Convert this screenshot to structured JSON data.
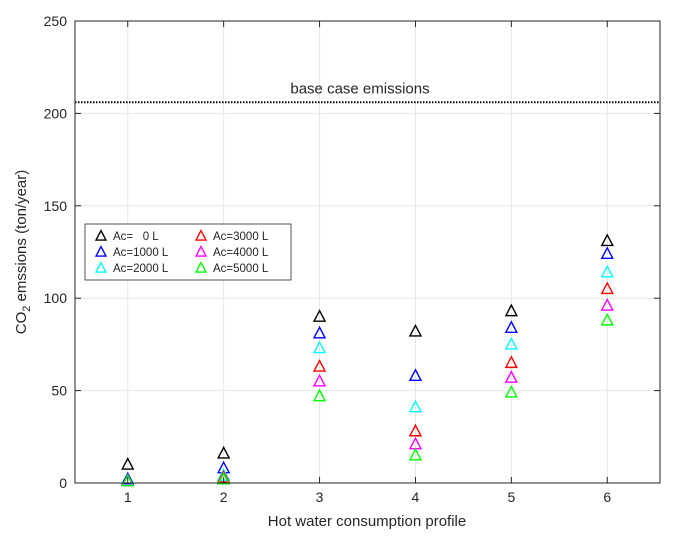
{
  "chart_data": {
    "type": "scatter",
    "marker": "triangle",
    "xlabel": "Hot water consumption profile",
    "ylabel_main": "CO",
    "ylabel_sub": "2",
    "ylabel_rest": " emssions (ton/year)",
    "xlim": [
      0.45,
      6.55
    ],
    "ylim": [
      0,
      250
    ],
    "xticks": [
      1,
      2,
      3,
      4,
      5,
      6
    ],
    "yticks": [
      0,
      50,
      100,
      150,
      200,
      250
    ],
    "grid": true,
    "legend_position": "left, mid-upper, 2 columns",
    "reference_line": {
      "y": 206,
      "label": "base case emissions",
      "color": "#000000",
      "style": "dotted"
    },
    "x": [
      1,
      2,
      3,
      4,
      5,
      6
    ],
    "series": [
      {
        "name": "Ac=   0 L",
        "color": "#000000",
        "values": [
          10,
          16,
          90,
          82,
          93,
          131
        ]
      },
      {
        "name": "Ac=1000 L",
        "color": "#0000ff",
        "values": [
          2,
          8,
          81,
          58,
          84,
          124
        ]
      },
      {
        "name": "Ac=2000 L",
        "color": "#00ffff",
        "values": [
          1,
          4,
          73,
          41,
          75,
          114
        ]
      },
      {
        "name": "Ac=3000 L",
        "color": "#ff0000",
        "values": [
          1,
          3,
          63,
          28,
          65,
          105
        ]
      },
      {
        "name": "Ac=4000 L",
        "color": "#ff00ff",
        "values": [
          1,
          2,
          55,
          21,
          57,
          96
        ]
      },
      {
        "name": "Ac=5000 L",
        "color": "#00ff00",
        "values": [
          1,
          2,
          47,
          15,
          49,
          88
        ]
      }
    ]
  }
}
